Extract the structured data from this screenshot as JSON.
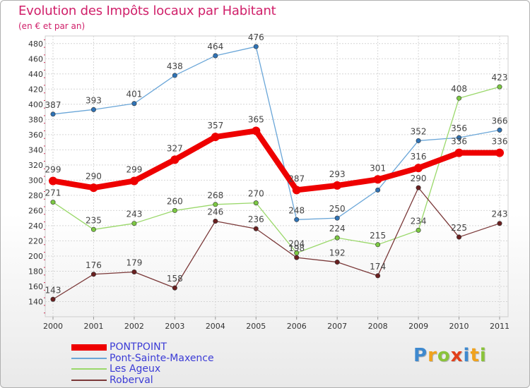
{
  "header": {
    "title": "Evolution des Impôts locaux par Habitant",
    "subtitle": "(en € et par an)"
  },
  "logo": {
    "letters": [
      "P",
      "r",
      "o",
      "x",
      "i",
      "t",
      "i"
    ],
    "colors": [
      "#3e89cf",
      "#f0a21d",
      "#8ac33a",
      "#e2401b",
      "#3e89cf",
      "#f0a21d",
      "#8ac33a"
    ]
  },
  "chart_data": {
    "type": "line",
    "title": "Evolution des Impôts locaux par Habitant",
    "subtitle": "(en € et par an)",
    "x": [
      "2000",
      "2001",
      "2002",
      "2003",
      "2004",
      "2005",
      "2006",
      "2007",
      "2008",
      "2009",
      "2010",
      "2011"
    ],
    "ylim": [
      120,
      490
    ],
    "yticks": [
      140,
      160,
      180,
      200,
      220,
      240,
      260,
      280,
      300,
      320,
      340,
      360,
      380,
      400,
      420,
      440,
      460,
      480
    ],
    "grid": true,
    "series": [
      {
        "name": "Pont-Sainte-Maxence",
        "color": "#6aa6d8",
        "point": "#2f73b6",
        "width": 1.3,
        "r": 3.2,
        "values": [
          387,
          393,
          401,
          438,
          464,
          476,
          248,
          250,
          287,
          352,
          356,
          366
        ],
        "labels": [
          "387",
          "393",
          "401",
          "438",
          "464",
          "476",
          "248",
          "250",
          "",
          "352",
          "356",
          "366"
        ]
      },
      {
        "name": "Les Ageux",
        "color": "#9ad86a",
        "point": "#7cc843",
        "width": 1.3,
        "r": 3.2,
        "values": [
          271,
          235,
          243,
          260,
          268,
          270,
          204,
          224,
          215,
          234,
          408,
          423
        ],
        "labels": [
          "271",
          "235",
          "243",
          "260",
          "268",
          "270",
          "204",
          "224",
          "215",
          "234",
          "408",
          "423"
        ]
      },
      {
        "name": "Roberval",
        "color": "#7a3838",
        "point": "#6a2020",
        "width": 1.3,
        "r": 3.2,
        "values": [
          143,
          176,
          179,
          158,
          246,
          236,
          198,
          192,
          174,
          290,
          225,
          243
        ],
        "labels": [
          "143",
          "176",
          "179",
          "158",
          "246",
          "236",
          "198",
          "192",
          "174",
          "290",
          "225",
          "243"
        ]
      },
      {
        "name": "PONTPOINT",
        "color": "#ee0000",
        "point": "#ee0000",
        "width": 8,
        "r": 6,
        "values": [
          299,
          290,
          299,
          327,
          357,
          365,
          287,
          293,
          301,
          316,
          336,
          336
        ],
        "labels": [
          "299",
          "290",
          "299",
          "327",
          "357",
          "365",
          "287",
          "293",
          "301",
          "316",
          "336",
          "336"
        ]
      }
    ],
    "legend": [
      "PONTPOINT",
      "Pont-Sainte-Maxence",
      "Les Ageux",
      "Roberval"
    ]
  }
}
